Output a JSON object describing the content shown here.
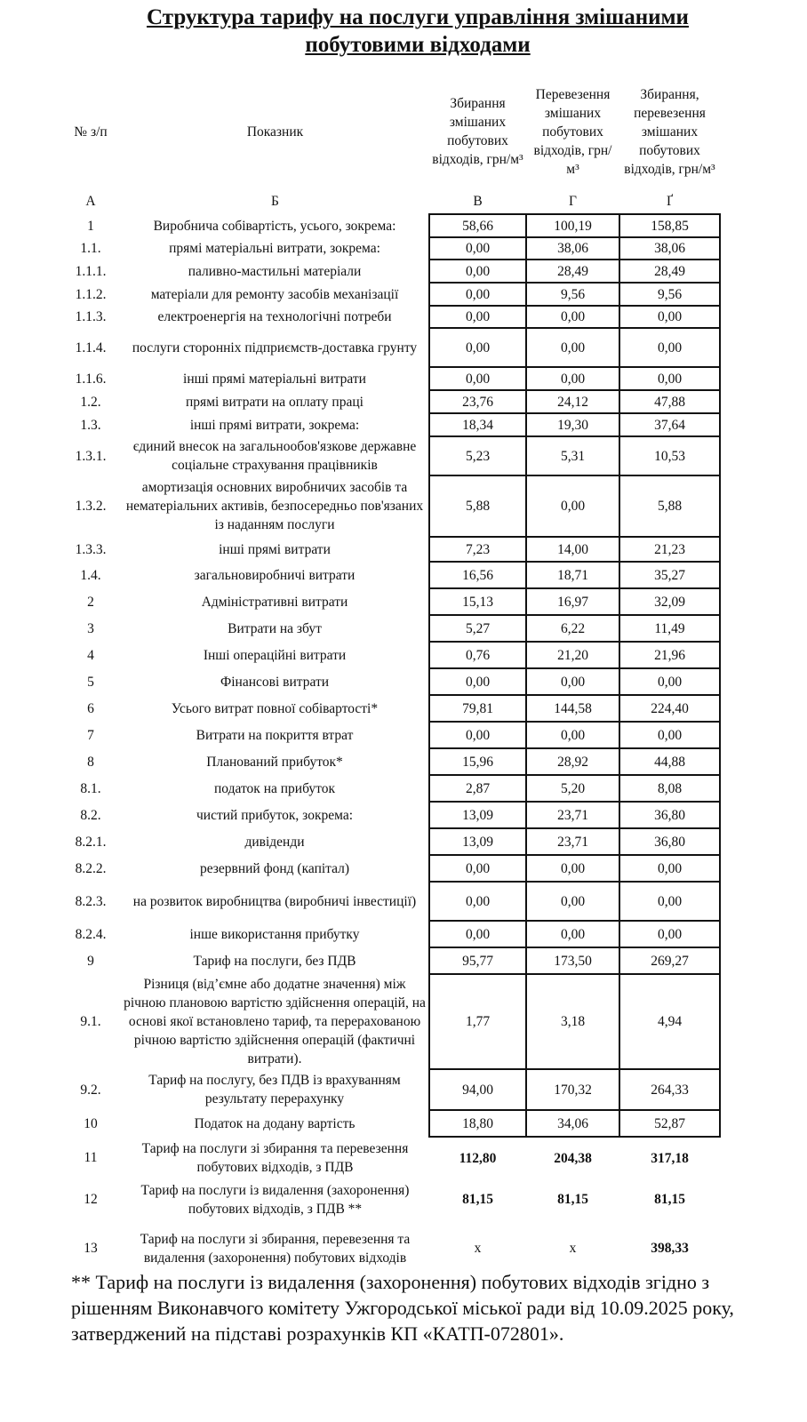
{
  "title": "Структура тарифу на послуги  управління змішаними побутовими відходами",
  "headers": {
    "num": "№ з/п",
    "indicator": "Показник",
    "col_v": "Збирання змішаних побутових відходів, грн/м³",
    "col_h": "Перевезення змішаних побутових відходів, грн/м³",
    "col_g": "Збирання, перевезення змішаних побутових відходів, грн/м³"
  },
  "letters": [
    "А",
    "Б",
    "В",
    "Г",
    "Ґ"
  ],
  "rows": [
    {
      "n": "1",
      "label": "Виробнича собівартість, усього, зокрема:",
      "v": [
        "58,66",
        "100,19",
        "158,85"
      ]
    },
    {
      "n": "1.1.",
      "label": "прямі матеріальні витрати, зокрема:",
      "v": [
        "0,00",
        "38,06",
        "38,06"
      ]
    },
    {
      "n": "1.1.1.",
      "label": "паливно-мастильні матеріали",
      "v": [
        "0,00",
        "28,49",
        "28,49"
      ]
    },
    {
      "n": "1.1.2.",
      "label": "матеріали для ремонту засобів механізації",
      "v": [
        "0,00",
        "9,56",
        "9,56"
      ]
    },
    {
      "n": "1.1.3.",
      "label": "електроенергія на технологічні потреби",
      "v": [
        "0,00",
        "0,00",
        "0,00"
      ]
    },
    {
      "n": "1.1.4.",
      "label": "послуги сторонніх підприємств-доставка грунту",
      "v": [
        "0,00",
        "0,00",
        "0,00"
      ]
    },
    {
      "n": "1.1.6.",
      "label": "інші прямі матеріальні витрати",
      "v": [
        "0,00",
        "0,00",
        "0,00"
      ]
    },
    {
      "n": "1.2.",
      "label": "прямі витрати на оплату праці",
      "v": [
        "23,76",
        "24,12",
        "47,88"
      ]
    },
    {
      "n": "1.3.",
      "label": "інші прямі витрати, зокрема:",
      "v": [
        "18,34",
        "19,30",
        "37,64"
      ]
    },
    {
      "n": "1.3.1.",
      "label": "єдиний внесок на загальнообов'язкове державне соціальне страхування працівників",
      "v": [
        "5,23",
        "5,31",
        "10,53"
      ]
    },
    {
      "n": "1.3.2.",
      "label": "амортизація основних виробничих засобів та нематеріальних активів, безпосередньо пов'язаних із наданням послуги",
      "v": [
        "5,88",
        "0,00",
        "5,88"
      ]
    },
    {
      "n": "1.3.3.",
      "label": "інші прямі витрати",
      "v": [
        "7,23",
        "14,00",
        "21,23"
      ]
    },
    {
      "n": "1.4.",
      "label": "загальновиробничі витрати",
      "v": [
        "16,56",
        "18,71",
        "35,27"
      ]
    },
    {
      "n": "2",
      "label": "Адміністративні витрати",
      "v": [
        "15,13",
        "16,97",
        "32,09"
      ]
    },
    {
      "n": "3",
      "label": "Витрати на збут",
      "v": [
        "5,27",
        "6,22",
        "11,49"
      ]
    },
    {
      "n": "4",
      "label": "Інші операційні витрати",
      "v": [
        "0,76",
        "21,20",
        "21,96"
      ]
    },
    {
      "n": "5",
      "label": "Фінансові витрати",
      "v": [
        "0,00",
        "0,00",
        "0,00"
      ]
    },
    {
      "n": "6",
      "label": "Усього витрат повної собівартості*",
      "v": [
        "79,81",
        "144,58",
        "224,40"
      ]
    },
    {
      "n": "7",
      "label": "Витрати на покриття втрат",
      "v": [
        "0,00",
        "0,00",
        "0,00"
      ]
    },
    {
      "n": "8",
      "label": "Планований прибуток*",
      "v": [
        "15,96",
        "28,92",
        "44,88"
      ]
    },
    {
      "n": "8.1.",
      "label": "податок на прибуток",
      "v": [
        "2,87",
        "5,20",
        "8,08"
      ]
    },
    {
      "n": "8.2.",
      "label": "чистий прибуток, зокрема:",
      "v": [
        "13,09",
        "23,71",
        "36,80"
      ]
    },
    {
      "n": "8.2.1.",
      "label": "дивіденди",
      "v": [
        "13,09",
        "23,71",
        "36,80"
      ]
    },
    {
      "n": "8.2.2.",
      "label": "резервний фонд (капітал)",
      "v": [
        "0,00",
        "0,00",
        "0,00"
      ]
    },
    {
      "n": "8.2.3.",
      "label": "на розвиток виробництва (виробничі інвестиції)",
      "v": [
        "0,00",
        "0,00",
        "0,00"
      ]
    },
    {
      "n": "8.2.4.",
      "label": "інше використання прибутку",
      "v": [
        "0,00",
        "0,00",
        "0,00"
      ]
    },
    {
      "n": "9",
      "label": "Тариф на послуги, без ПДВ",
      "v": [
        "95,77",
        "173,50",
        "269,27"
      ]
    },
    {
      "n": "9.1.",
      "label": "Різниця (від’ємне або додатне значення) між річною плановою вартістю здійснення операцій, на основі якої встановлено тариф, та перерахованою річною вартістю здійснення операцій (фактичні витрати).",
      "v": [
        "1,77",
        "3,18",
        "4,94"
      ]
    },
    {
      "n": "9.2.",
      "label": "Тариф на послугу, без ПДВ із врахуванням результату перерахунку",
      "v": [
        "94,00",
        "170,32",
        "264,33"
      ]
    },
    {
      "n": "10",
      "label": "Податок на додану вартість",
      "v": [
        "18,80",
        "34,06",
        "52,87"
      ]
    },
    {
      "n": "11",
      "label": "Тариф на послуги зі збирання та перевезення побутових відходів, з ПДВ",
      "v": [
        "112,80",
        "204,38",
        "317,18"
      ],
      "bold": true
    },
    {
      "n": "12",
      "label": "Тариф на послуги із видалення (захоронення) побутових відходів, з ПДВ **",
      "v": [
        "81,15",
        "81,15",
        "81,15"
      ],
      "bold": true
    },
    {
      "n": "13",
      "label": "Тариф на послуги  зі збирання, перевезення та видалення (захоронення) побутових відходів",
      "v": [
        "х",
        "х",
        "398,33"
      ],
      "bold": true,
      "plain_x": true
    }
  ],
  "footnote": "** Тариф на послуги із видалення (захоронення) побутових відходів згідно з рішенням Виконавчого комітету Ужгородської міської ради від 10.09.2025 року, затверджений на підставі розрахунків КП «КАТП-072801»."
}
